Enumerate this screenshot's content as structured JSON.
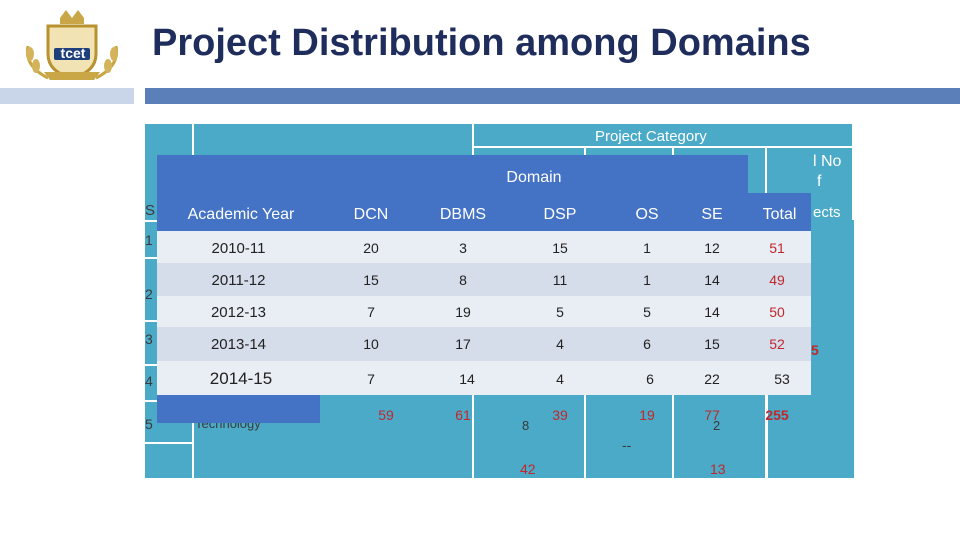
{
  "slide": {
    "title": "Project Distribution among Domains",
    "logo_text": "tcet"
  },
  "background_table": {
    "header_project_category": "Project Category",
    "header_total_no_fragment_1": "l No",
    "header_total_no_fragment_2": "f",
    "header_total_no_fragment_3": "ects",
    "header_sr_fragment": "S",
    "row_numbers": [
      "1",
      "2",
      "3",
      "4",
      "5"
    ],
    "technology_fragment": "Technology",
    "total_fragment": "5",
    "bottom_values": [
      "42",
      "--",
      "13"
    ],
    "partial_values": [
      "8",
      "2"
    ]
  },
  "table": {
    "domain_header": "Domain",
    "columns": [
      "Academic Year",
      "DCN",
      "DBMS",
      "DSP",
      "OS",
      "SE",
      "Total"
    ],
    "rows": [
      {
        "year": "2010-11",
        "DCN": "20",
        "DBMS": "3",
        "DSP": "15",
        "OS": "1",
        "SE": "12",
        "Total": "51"
      },
      {
        "year": "2011-12",
        "DCN": "15",
        "DBMS": "8",
        "DSP": "11",
        "OS": "1",
        "SE": "14",
        "Total": "49"
      },
      {
        "year": "2012-13",
        "DCN": "7",
        "DBMS": "19",
        "DSP": "5",
        "OS": "5",
        "SE": "14",
        "Total": "50"
      },
      {
        "year": "2013-14",
        "DCN": "10",
        "DBMS": "17",
        "DSP": "4",
        "OS": "6",
        "SE": "15",
        "Total": "52"
      },
      {
        "year": "2014-15",
        "DCN": "7",
        "DBMS": "14",
        "DSP": "4",
        "OS": "6",
        "SE": "22",
        "Total": "53"
      }
    ],
    "totals": {
      "DCN": "59",
      "DBMS": "61",
      "DSP": "39",
      "OS": "19",
      "SE": "77",
      "Total": "255"
    }
  },
  "colors": {
    "title": "#1f2d5c",
    "header_blue": "#4472c4",
    "background_teal": "#4aaac8",
    "total_red": "#c0282c",
    "row_light": "#e9edf4",
    "row_lighter": "#d5dcea"
  }
}
